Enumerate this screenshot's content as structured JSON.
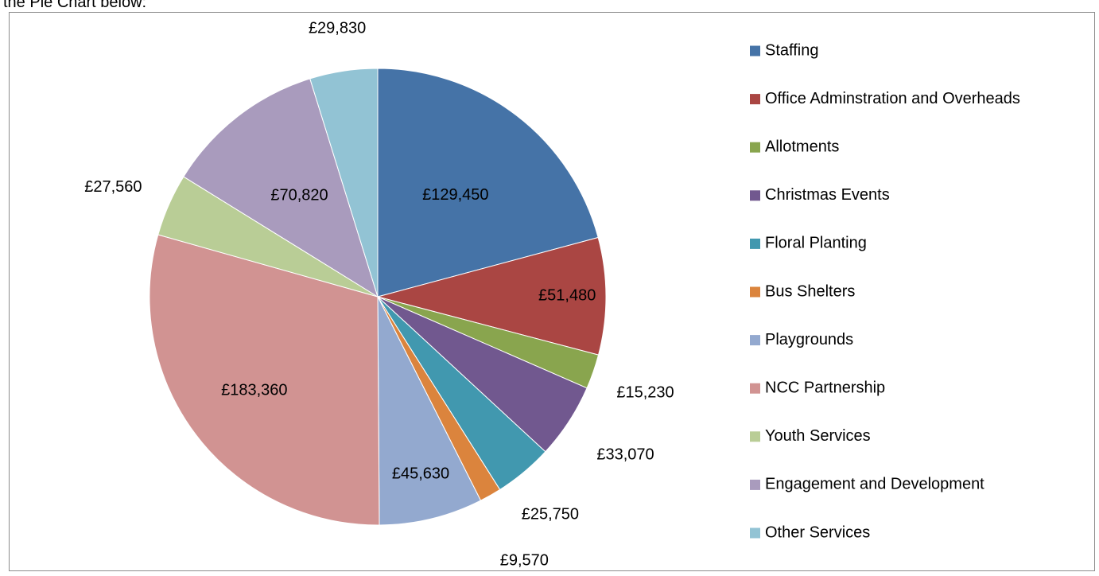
{
  "caption": "the Pie Chart below:",
  "chart_data": {
    "type": "pie",
    "title": "",
    "legend_position": "right",
    "categories": [
      "Staffing",
      "Office Adminstration and Overheads",
      "Allotments",
      "Christmas Events",
      "Floral Planting",
      "Bus Shelters",
      "Playgrounds",
      "NCC Partnership",
      "Youth Services",
      "Engagement and Development",
      "Other Services"
    ],
    "values": [
      129450,
      51480,
      15230,
      33070,
      25750,
      9570,
      45630,
      183360,
      27560,
      70820,
      29830
    ],
    "data_labels": [
      "£129,450",
      "£51,480",
      "£15,230",
      "£33,070",
      "£25,750",
      "£9,570",
      "£45,630",
      "£183,360",
      "£27,560",
      "£70,820",
      "£29,830"
    ],
    "colors": [
      "#4573a7",
      "#aa4643",
      "#89a54e",
      "#71588f",
      "#4198af",
      "#db843d",
      "#93a9cf",
      "#d19392",
      "#b9cd96",
      "#a99bbd",
      "#92c3d4"
    ]
  }
}
